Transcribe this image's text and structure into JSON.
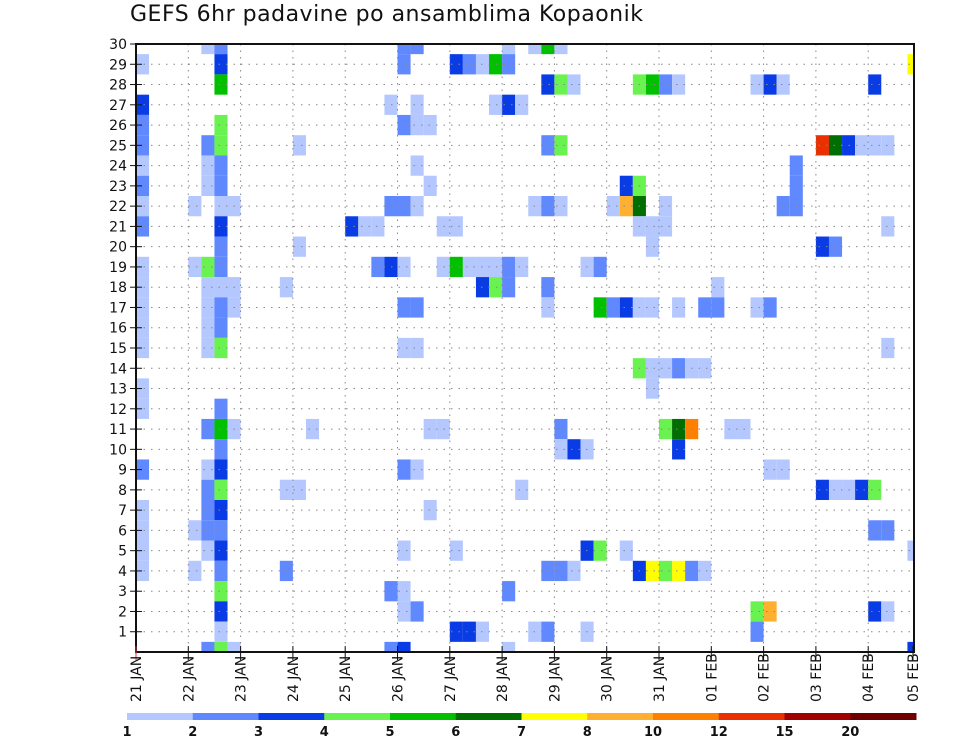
{
  "title": "GEFS 6hr padavine po ansamblima Kopaonik",
  "chart_data": {
    "type": "heatmap",
    "title": "GEFS 6hr padavine po ansamblima Kopaonik",
    "xlabel": "",
    "ylabel": "",
    "x_unit": "6-hour step from 21 JAN 00Z",
    "x_steps": 60,
    "y_range": [
      0,
      30
    ],
    "y_ticks": [
      "1",
      "2",
      "3",
      "4",
      "5",
      "6",
      "7",
      "8",
      "9",
      "10",
      "11",
      "12",
      "13",
      "14",
      "15",
      "16",
      "17",
      "18",
      "19",
      "20",
      "21",
      "22",
      "23",
      "24",
      "25",
      "26",
      "27",
      "28",
      "29",
      "30"
    ],
    "x_ticks": [
      "21 JAN",
      "22 JAN",
      "23 JAN",
      "24 JAN",
      "25 JAN",
      "26 JAN",
      "27 JAN",
      "28 JAN",
      "29 JAN",
      "30 JAN",
      "31 JAN",
      "01 FEB",
      "02 FEB",
      "03 FEB",
      "04 FEB",
      "05 FEB"
    ],
    "grid": true,
    "colorbar": {
      "labels": [
        "1",
        "2",
        "3",
        "4",
        "5",
        "6",
        "7",
        "8",
        "10",
        "12",
        "15",
        "20"
      ],
      "colors": [
        "#b4c8ff",
        "#6088ff",
        "#0a3ce6",
        "#6af250",
        "#00c000",
        "#006e00",
        "#ffff00",
        "#ffb030",
        "#ff8000",
        "#e83000",
        "#a00000",
        "#6e0000"
      ]
    },
    "cells_format": "[member, step, level]",
    "cells": [
      [
        30,
        5,
        1
      ],
      [
        30,
        6,
        2
      ],
      [
        30,
        20,
        2
      ],
      [
        30,
        21,
        2
      ],
      [
        30,
        28,
        1
      ],
      [
        30,
        30,
        1
      ],
      [
        30,
        31,
        5
      ],
      [
        30,
        32,
        1
      ],
      [
        29,
        0,
        1
      ],
      [
        29,
        6,
        3
      ],
      [
        29,
        20,
        2
      ],
      [
        29,
        24,
        3
      ],
      [
        29,
        25,
        2
      ],
      [
        29,
        26,
        1
      ],
      [
        29,
        27,
        5
      ],
      [
        29,
        28,
        2
      ],
      [
        29,
        59,
        7
      ],
      [
        28,
        6,
        5
      ],
      [
        28,
        31,
        3
      ],
      [
        28,
        32,
        4
      ],
      [
        28,
        33,
        1
      ],
      [
        28,
        38,
        4
      ],
      [
        28,
        39,
        5
      ],
      [
        28,
        40,
        2
      ],
      [
        28,
        41,
        1
      ],
      [
        28,
        47,
        1
      ],
      [
        28,
        48,
        3
      ],
      [
        28,
        49,
        1
      ],
      [
        28,
        56,
        3
      ],
      [
        27,
        0,
        3
      ],
      [
        27,
        19,
        1
      ],
      [
        27,
        21,
        1
      ],
      [
        27,
        27,
        1
      ],
      [
        27,
        28,
        3
      ],
      [
        27,
        29,
        1
      ],
      [
        26,
        0,
        2
      ],
      [
        26,
        6,
        4
      ],
      [
        26,
        20,
        2
      ],
      [
        26,
        21,
        1
      ],
      [
        26,
        22,
        1
      ],
      [
        25,
        0,
        2
      ],
      [
        25,
        5,
        2
      ],
      [
        25,
        6,
        4
      ],
      [
        25,
        12,
        1
      ],
      [
        25,
        31,
        2
      ],
      [
        25,
        32,
        4
      ],
      [
        25,
        52,
        10
      ],
      [
        25,
        53,
        6
      ],
      [
        25,
        54,
        3
      ],
      [
        25,
        55,
        1
      ],
      [
        25,
        56,
        1
      ],
      [
        25,
        57,
        1
      ],
      [
        24,
        0,
        1
      ],
      [
        24,
        5,
        1
      ],
      [
        24,
        6,
        2
      ],
      [
        24,
        21,
        1
      ],
      [
        24,
        50,
        2
      ],
      [
        23,
        0,
        2
      ],
      [
        23,
        5,
        1
      ],
      [
        23,
        6,
        2
      ],
      [
        23,
        22,
        1
      ],
      [
        23,
        37,
        3
      ],
      [
        23,
        38,
        4
      ],
      [
        23,
        50,
        2
      ],
      [
        22,
        0,
        1
      ],
      [
        22,
        4,
        1
      ],
      [
        22,
        6,
        1
      ],
      [
        22,
        7,
        1
      ],
      [
        22,
        19,
        2
      ],
      [
        22,
        20,
        2
      ],
      [
        22,
        21,
        1
      ],
      [
        22,
        30,
        1
      ],
      [
        22,
        31,
        2
      ],
      [
        22,
        32,
        1
      ],
      [
        22,
        36,
        1
      ],
      [
        22,
        37,
        8
      ],
      [
        22,
        38,
        6
      ],
      [
        22,
        40,
        1
      ],
      [
        22,
        49,
        2
      ],
      [
        22,
        50,
        2
      ],
      [
        21,
        0,
        2
      ],
      [
        21,
        6,
        3
      ],
      [
        21,
        16,
        3
      ],
      [
        21,
        17,
        1
      ],
      [
        21,
        18,
        1
      ],
      [
        21,
        23,
        1
      ],
      [
        21,
        24,
        1
      ],
      [
        21,
        38,
        1
      ],
      [
        21,
        39,
        1
      ],
      [
        21,
        40,
        1
      ],
      [
        21,
        57,
        1
      ],
      [
        20,
        6,
        2
      ],
      [
        20,
        12,
        1
      ],
      [
        20,
        39,
        1
      ],
      [
        20,
        52,
        3
      ],
      [
        20,
        53,
        2
      ],
      [
        19,
        0,
        1
      ],
      [
        19,
        4,
        1
      ],
      [
        19,
        5,
        4
      ],
      [
        19,
        6,
        2
      ],
      [
        19,
        18,
        2
      ],
      [
        19,
        19,
        3
      ],
      [
        19,
        20,
        1
      ],
      [
        19,
        23,
        1
      ],
      [
        19,
        24,
        5
      ],
      [
        19,
        25,
        1
      ],
      [
        19,
        26,
        1
      ],
      [
        19,
        27,
        1
      ],
      [
        19,
        28,
        2
      ],
      [
        19,
        29,
        1
      ],
      [
        19,
        34,
        1
      ],
      [
        19,
        35,
        2
      ],
      [
        18,
        0,
        1
      ],
      [
        18,
        5,
        1
      ],
      [
        18,
        6,
        1
      ],
      [
        18,
        7,
        1
      ],
      [
        18,
        11,
        1
      ],
      [
        18,
        26,
        3
      ],
      [
        18,
        27,
        4
      ],
      [
        18,
        28,
        2
      ],
      [
        18,
        31,
        2
      ],
      [
        18,
        44,
        1
      ],
      [
        17,
        0,
        1
      ],
      [
        17,
        5,
        1
      ],
      [
        17,
        6,
        2
      ],
      [
        17,
        7,
        1
      ],
      [
        17,
        20,
        2
      ],
      [
        17,
        21,
        2
      ],
      [
        17,
        31,
        1
      ],
      [
        17,
        35,
        5
      ],
      [
        17,
        36,
        2
      ],
      [
        17,
        37,
        3
      ],
      [
        17,
        38,
        1
      ],
      [
        17,
        39,
        1
      ],
      [
        17,
        41,
        1
      ],
      [
        17,
        43,
        2
      ],
      [
        17,
        44,
        2
      ],
      [
        17,
        47,
        1
      ],
      [
        17,
        48,
        2
      ],
      [
        16,
        0,
        1
      ],
      [
        16,
        5,
        1
      ],
      [
        16,
        6,
        2
      ],
      [
        15,
        0,
        1
      ],
      [
        15,
        5,
        1
      ],
      [
        15,
        6,
        4
      ],
      [
        15,
        20,
        1
      ],
      [
        15,
        21,
        1
      ],
      [
        15,
        57,
        1
      ],
      [
        14,
        38,
        4
      ],
      [
        14,
        39,
        1
      ],
      [
        14,
        40,
        1
      ],
      [
        14,
        41,
        2
      ],
      [
        14,
        42,
        1
      ],
      [
        14,
        43,
        1
      ],
      [
        13,
        0,
        1
      ],
      [
        13,
        39,
        1
      ],
      [
        12,
        0,
        1
      ],
      [
        12,
        6,
        2
      ],
      [
        11,
        5,
        2
      ],
      [
        11,
        6,
        5
      ],
      [
        11,
        7,
        1
      ],
      [
        11,
        13,
        1
      ],
      [
        11,
        22,
        1
      ],
      [
        11,
        23,
        1
      ],
      [
        11,
        32,
        2
      ],
      [
        11,
        40,
        4
      ],
      [
        11,
        41,
        6
      ],
      [
        11,
        42,
        9
      ],
      [
        11,
        45,
        1
      ],
      [
        11,
        46,
        1
      ],
      [
        10,
        6,
        2
      ],
      [
        10,
        32,
        1
      ],
      [
        10,
        33,
        3
      ],
      [
        10,
        34,
        1
      ],
      [
        10,
        41,
        3
      ],
      [
        9,
        0,
        2
      ],
      [
        9,
        5,
        1
      ],
      [
        9,
        6,
        3
      ],
      [
        9,
        20,
        2
      ],
      [
        9,
        21,
        1
      ],
      [
        9,
        48,
        1
      ],
      [
        9,
        49,
        1
      ],
      [
        8,
        5,
        2
      ],
      [
        8,
        6,
        4
      ],
      [
        8,
        11,
        1
      ],
      [
        8,
        12,
        1
      ],
      [
        8,
        29,
        1
      ],
      [
        8,
        52,
        3
      ],
      [
        8,
        53,
        1
      ],
      [
        8,
        54,
        1
      ],
      [
        8,
        55,
        3
      ],
      [
        8,
        56,
        4
      ],
      [
        7,
        0,
        1
      ],
      [
        7,
        5,
        2
      ],
      [
        7,
        6,
        3
      ],
      [
        7,
        22,
        1
      ],
      [
        6,
        0,
        1
      ],
      [
        6,
        4,
        1
      ],
      [
        6,
        5,
        2
      ],
      [
        6,
        6,
        2
      ],
      [
        6,
        56,
        2
      ],
      [
        6,
        57,
        2
      ],
      [
        5,
        0,
        1
      ],
      [
        5,
        5,
        1
      ],
      [
        5,
        6,
        3
      ],
      [
        5,
        20,
        1
      ],
      [
        5,
        24,
        1
      ],
      [
        5,
        34,
        3
      ],
      [
        5,
        35,
        4
      ],
      [
        5,
        37,
        1
      ],
      [
        5,
        59,
        1
      ],
      [
        4,
        0,
        1
      ],
      [
        4,
        4,
        1
      ],
      [
        4,
        6,
        2
      ],
      [
        4,
        11,
        2
      ],
      [
        4,
        31,
        2
      ],
      [
        4,
        32,
        2
      ],
      [
        4,
        33,
        1
      ],
      [
        4,
        38,
        3
      ],
      [
        4,
        39,
        7
      ],
      [
        4,
        40,
        4
      ],
      [
        4,
        41,
        7
      ],
      [
        4,
        42,
        2
      ],
      [
        4,
        43,
        1
      ],
      [
        3,
        6,
        4
      ],
      [
        3,
        19,
        2
      ],
      [
        3,
        20,
        1
      ],
      [
        3,
        28,
        2
      ],
      [
        2,
        6,
        3
      ],
      [
        2,
        20,
        1
      ],
      [
        2,
        21,
        2
      ],
      [
        2,
        47,
        4
      ],
      [
        2,
        48,
        8
      ],
      [
        2,
        56,
        3
      ],
      [
        2,
        57,
        1
      ],
      [
        1,
        6,
        1
      ],
      [
        1,
        24,
        3
      ],
      [
        1,
        25,
        3
      ],
      [
        1,
        26,
        1
      ],
      [
        1,
        30,
        1
      ],
      [
        1,
        31,
        2
      ],
      [
        1,
        34,
        1
      ],
      [
        1,
        47,
        2
      ],
      [
        0,
        5,
        2
      ],
      [
        0,
        6,
        4
      ],
      [
        0,
        7,
        1
      ],
      [
        0,
        19,
        2
      ],
      [
        0,
        20,
        3
      ],
      [
        0,
        28,
        1
      ],
      [
        0,
        59,
        3
      ]
    ]
  }
}
